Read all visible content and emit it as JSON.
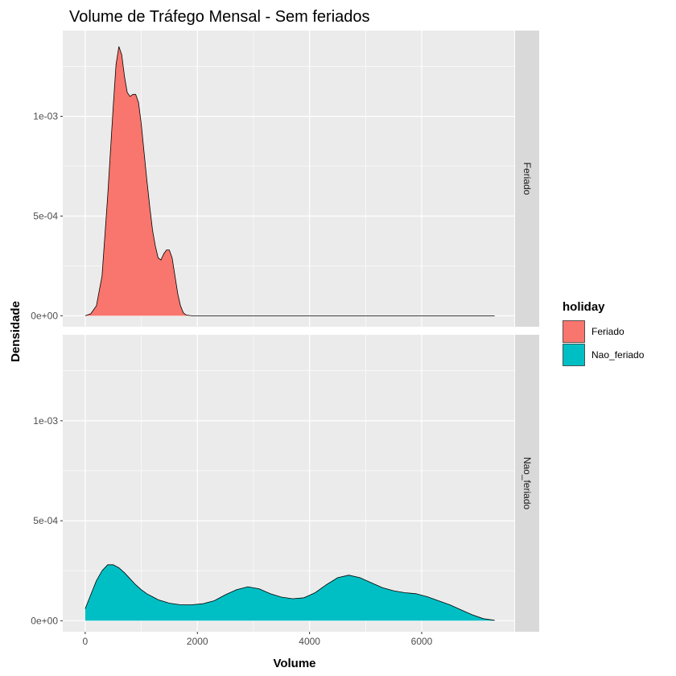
{
  "chart_data": {
    "type": "area",
    "subtype": "density-faceted",
    "title": "Volume de Tráfego Mensal - Sem feriados",
    "xlabel": "Volume",
    "ylabel": "Densidade",
    "xlim": [
      -400,
      7650
    ],
    "ylim": [
      -5.5e-05,
      0.00143
    ],
    "x_ticks": [
      0,
      2000,
      4000,
      6000
    ],
    "x_tick_labels": [
      "0",
      "2000",
      "4000",
      "6000"
    ],
    "y_ticks": [
      0,
      0.0005,
      0.001
    ],
    "y_tick_labels": [
      "0e+00",
      "5e-04",
      "1e-03"
    ],
    "grid": true,
    "facet_layout": "rows",
    "legend": {
      "title": "holiday",
      "position": "right",
      "items": [
        {
          "label": "Feriado",
          "color": "#F8766D"
        },
        {
          "label": "Nao_feriado",
          "color": "#00BFC4"
        }
      ]
    },
    "facets": [
      {
        "strip_label": "Feriado",
        "series": {
          "name": "Feriado",
          "color": "#F8766D",
          "x": [
            0,
            100,
            200,
            300,
            400,
            500,
            550,
            600,
            650,
            700,
            750,
            800,
            850,
            900,
            950,
            1000,
            1050,
            1100,
            1150,
            1200,
            1250,
            1300,
            1350,
            1400,
            1450,
            1500,
            1550,
            1600,
            1650,
            1700,
            1750,
            1800,
            1900,
            2000,
            3000,
            4000,
            5000,
            6000,
            7300
          ],
          "y": [
            0,
            1e-05,
            5e-05,
            0.0002,
            0.0006,
            0.00105,
            0.00126,
            0.00135,
            0.00131,
            0.0012,
            0.00112,
            0.0011,
            0.00111,
            0.00111,
            0.00107,
            0.00096,
            0.00082,
            0.00068,
            0.00055,
            0.00043,
            0.00035,
            0.00029,
            0.00028,
            0.00031,
            0.00033,
            0.00033,
            0.00029,
            0.0002,
            0.00011,
            5e-05,
            1.5e-05,
            4e-06,
            0,
            0,
            0,
            0,
            0,
            0,
            0
          ]
        }
      },
      {
        "strip_label": "Nao_feriado",
        "series": {
          "name": "Nao_feriado",
          "color": "#00BFC4",
          "x": [
            0,
            100,
            200,
            300,
            400,
            500,
            600,
            700,
            800,
            900,
            1000,
            1100,
            1200,
            1300,
            1500,
            1700,
            1900,
            2100,
            2300,
            2500,
            2700,
            2900,
            3100,
            3300,
            3500,
            3700,
            3900,
            4100,
            4300,
            4500,
            4700,
            4900,
            5100,
            5300,
            5500,
            5700,
            5900,
            6100,
            6300,
            6500,
            6700,
            6900,
            7100,
            7300
          ],
          "y": [
            6e-05,
            0.00013,
            0.0002,
            0.00025,
            0.00028,
            0.00028,
            0.000265,
            0.00024,
            0.00021,
            0.00018,
            0.000155,
            0.000135,
            0.00012,
            0.000105,
            8.8e-05,
            8e-05,
            8e-05,
            8.5e-05,
            0.0001,
            0.00013,
            0.000155,
            0.00017,
            0.00016,
            0.000135,
            0.000118,
            0.00011,
            0.000115,
            0.00014,
            0.00018,
            0.000215,
            0.000228,
            0.000215,
            0.00019,
            0.000165,
            0.00015,
            0.00014,
            0.000135,
            0.00012,
            0.0001,
            8e-05,
            5.5e-05,
            3e-05,
            1e-05,
            2e-06
          ]
        }
      }
    ]
  }
}
